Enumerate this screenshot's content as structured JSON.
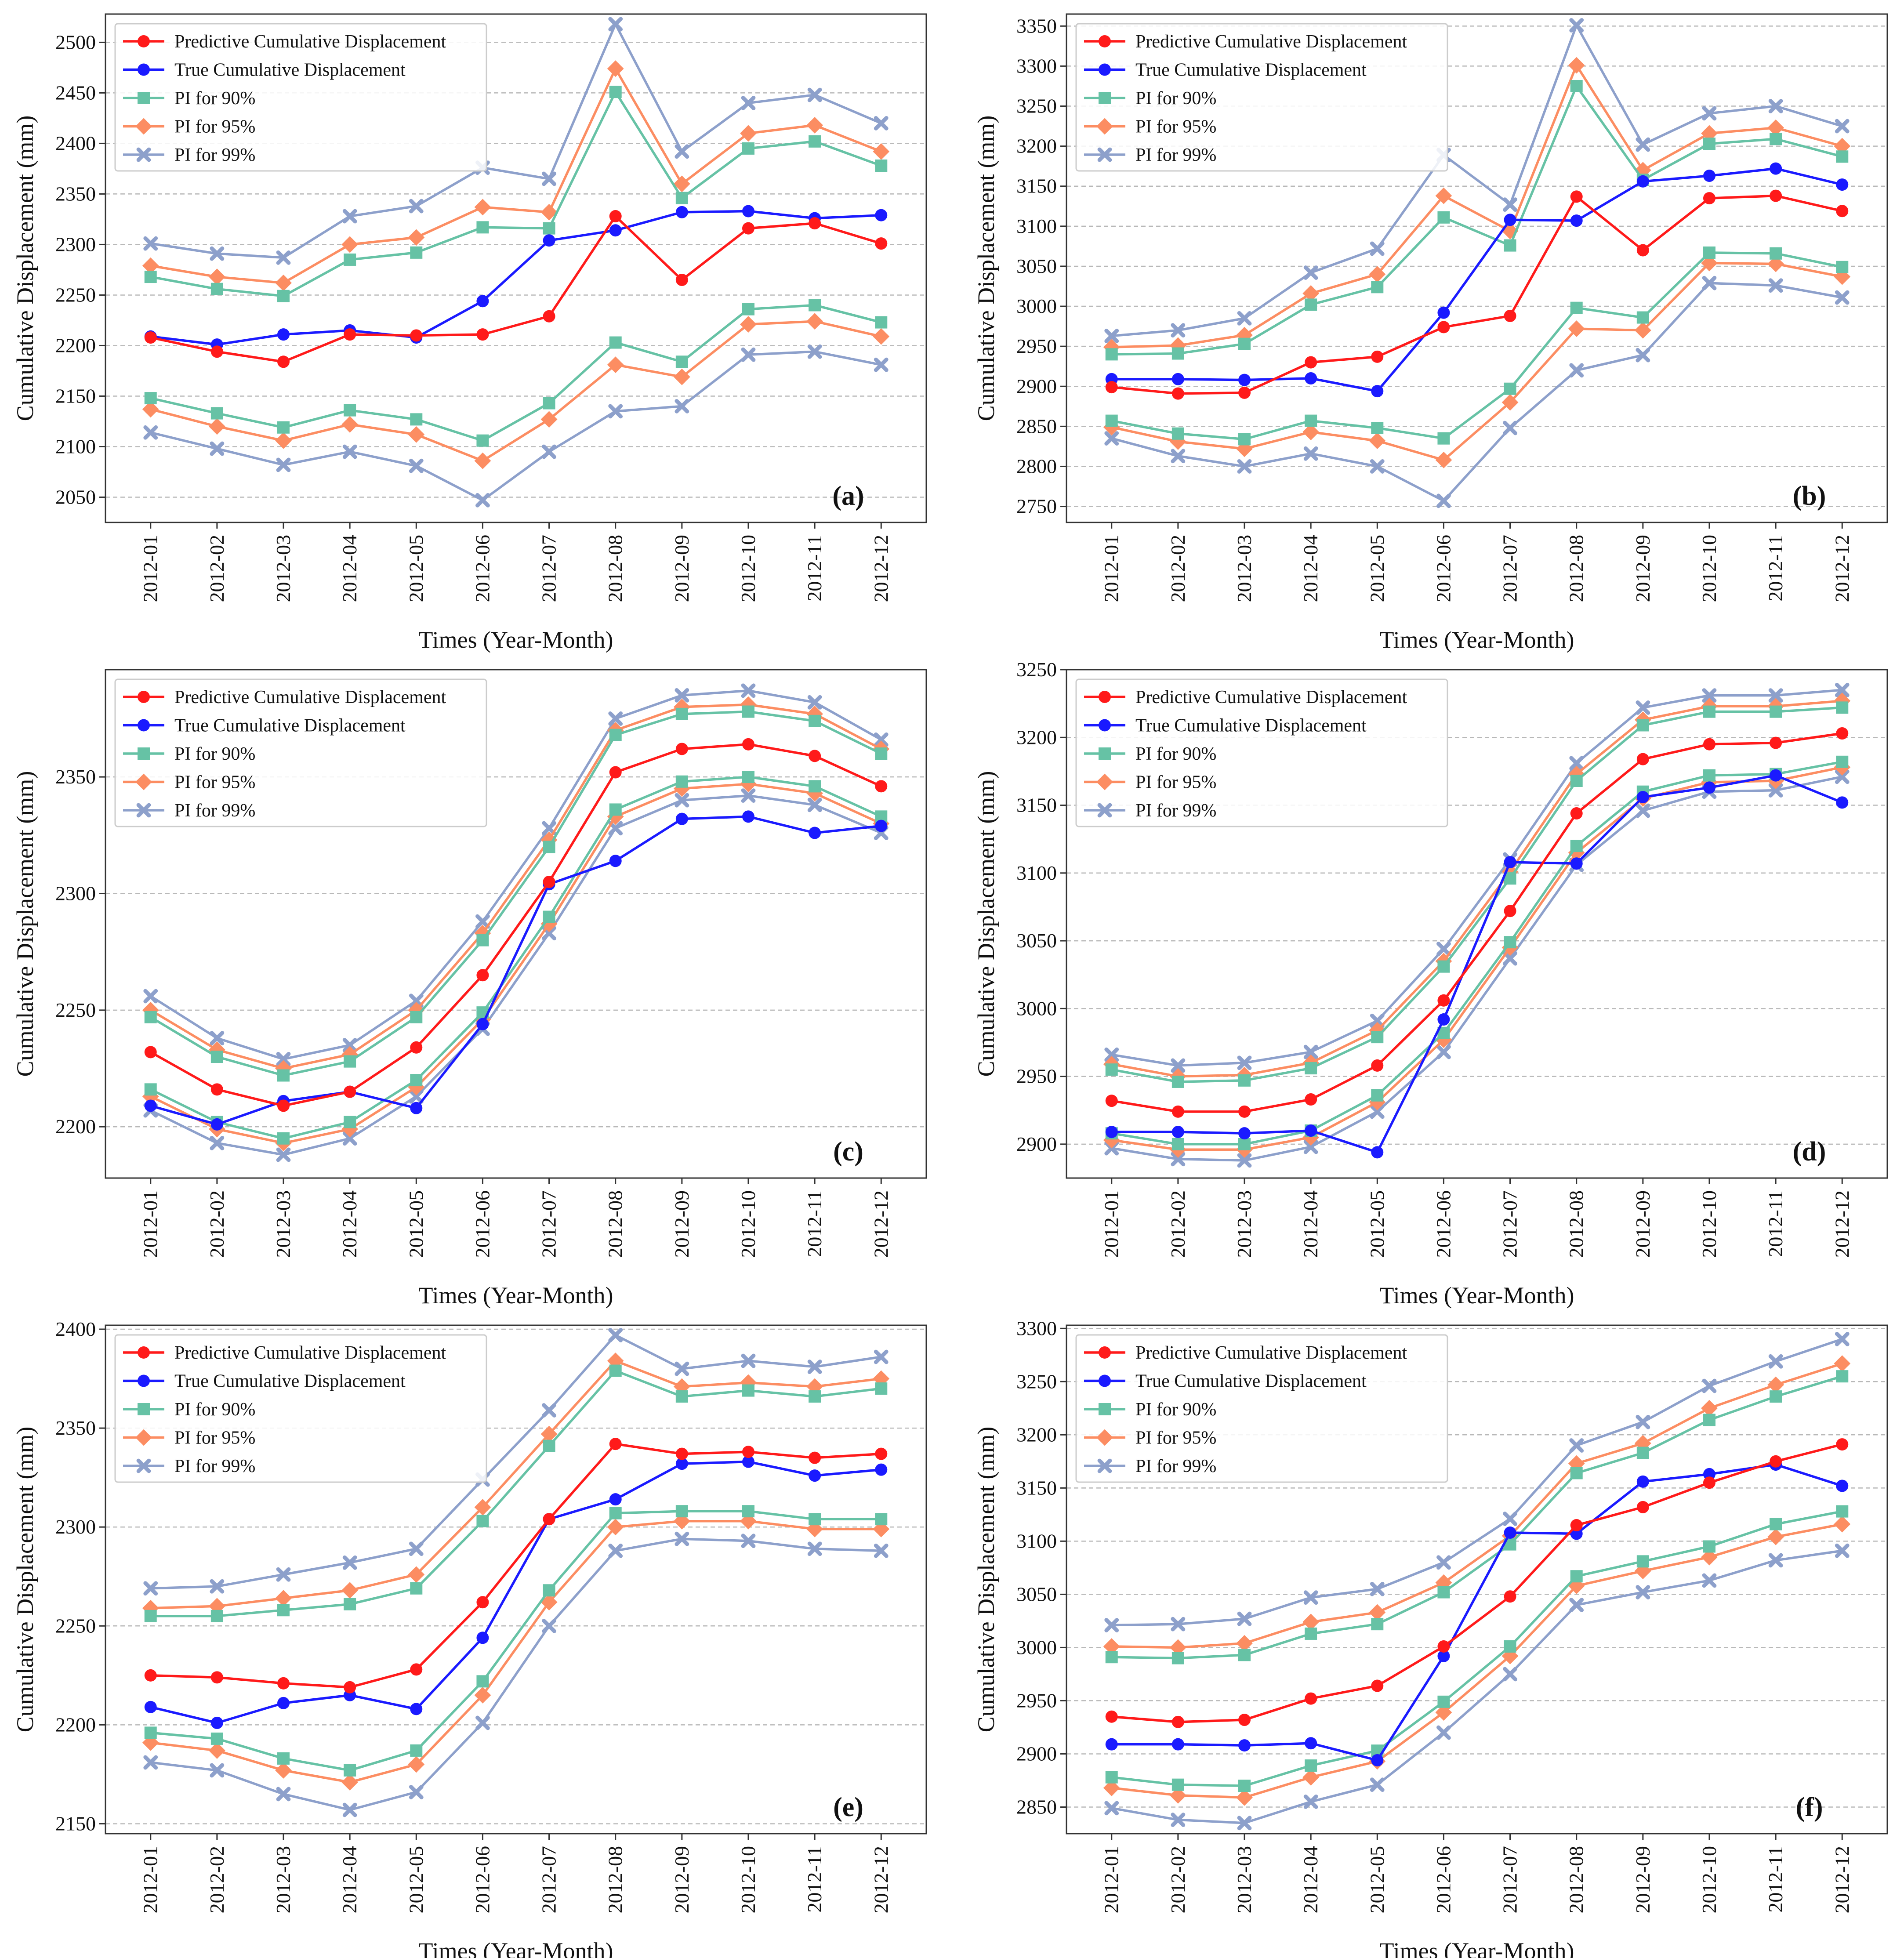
{
  "series_styles": [
    {
      "color": "#ff1a1a",
      "marker": "circle"
    },
    {
      "color": "#1a1aff",
      "marker": "circle"
    },
    {
      "color": "#66c2a5",
      "marker": "square"
    },
    {
      "color": "#fc8d62",
      "marker": "diamond"
    },
    {
      "color": "#8da0cb",
      "marker": "x"
    }
  ],
  "chart_data": [
    {
      "type": "line",
      "panel_label": "(a)",
      "xlabel": "Times (Year-Month)",
      "ylabel": "Cumulative Displacement (mm)",
      "categories": [
        "2012-01",
        "2012-02",
        "2012-03",
        "2012-04",
        "2012-05",
        "2012-06",
        "2012-07",
        "2012-08",
        "2012-09",
        "2012-10",
        "2012-11",
        "2012-12"
      ],
      "ylim": [
        2025,
        2528
      ],
      "yticks": [
        2050,
        2100,
        2150,
        2200,
        2250,
        2300,
        2350,
        2400,
        2450,
        2500
      ],
      "grid": "y-dashed",
      "legend": "top-left",
      "series": [
        {
          "name": "Predictive Cumulative Displacement",
          "values": [
            2208,
            2194,
            2184,
            2211,
            2210,
            2211,
            2229,
            2328,
            2265,
            2316,
            2321,
            2301
          ]
        },
        {
          "name": "True Cumulative Displacement",
          "values": [
            2209,
            2201,
            2211,
            2215,
            2208,
            2244,
            2304,
            2314,
            2332,
            2333,
            2326,
            2329
          ]
        },
        {
          "name": "PI for 90%",
          "bands": [
            [
              2268,
              2256,
              2249,
              2285,
              2292,
              2317,
              2316,
              2451,
              2346,
              2395,
              2402,
              2378
            ],
            [
              2148,
              2133,
              2119,
              2136,
              2127,
              2106,
              2143,
              2203,
              2184,
              2236,
              2240,
              2223
            ]
          ]
        },
        {
          "name": "PI for 95%",
          "bands": [
            [
              2279,
              2268,
              2262,
              2300,
              2307,
              2337,
              2332,
              2474,
              2360,
              2410,
              2418,
              2392
            ],
            [
              2137,
              2120,
              2106,
              2122,
              2112,
              2086,
              2127,
              2181,
              2169,
              2221,
              2224,
              2209
            ]
          ]
        },
        {
          "name": "PI for 99%",
          "bands": [
            [
              2301,
              2291,
              2287,
              2328,
              2338,
              2376,
              2365,
              2518,
              2392,
              2440,
              2448,
              2420
            ],
            [
              2114,
              2098,
              2082,
              2095,
              2081,
              2047,
              2095,
              2135,
              2140,
              2191,
              2194,
              2181
            ]
          ]
        }
      ]
    },
    {
      "type": "line",
      "panel_label": "(b)",
      "xlabel": "Times (Year-Month)",
      "ylabel": "Cumulative Displacement (mm)",
      "categories": [
        "2012-01",
        "2012-02",
        "2012-03",
        "2012-04",
        "2012-05",
        "2012-06",
        "2012-07",
        "2012-08",
        "2012-09",
        "2012-10",
        "2012-11",
        "2012-12"
      ],
      "ylim": [
        2730,
        3365
      ],
      "yticks": [
        2750,
        2800,
        2850,
        2900,
        2950,
        3000,
        3050,
        3100,
        3150,
        3200,
        3250,
        3300,
        3350
      ],
      "grid": "y-dashed",
      "legend": "top-left",
      "series": [
        {
          "name": "Predictive Cumulative Displacement",
          "values": [
            2899,
            2891,
            2892,
            2930,
            2937,
            2974,
            2988,
            3137,
            3070,
            3135,
            3138,
            3119
          ]
        },
        {
          "name": "True Cumulative Displacement",
          "values": [
            2909,
            2909,
            2908,
            2910,
            2894,
            2992,
            3108,
            3107,
            3156,
            3163,
            3172,
            3152
          ]
        },
        {
          "name": "PI for 90%",
          "bands": [
            [
              2940,
              2941,
              2953,
              3002,
              3024,
              3111,
              3076,
              3275,
              3158,
              3203,
              3209,
              3187
            ],
            [
              2857,
              2841,
              2834,
              2857,
              2848,
              2835,
              2897,
              2998,
              2986,
              3067,
              3066,
              3049
            ]
          ]
        },
        {
          "name": "PI for 95%",
          "bands": [
            [
              2949,
              2951,
              2964,
              3016,
              3040,
              3138,
              3094,
              3301,
              3170,
              3216,
              3223,
              3200
            ],
            [
              2849,
              2831,
              2822,
              2843,
              2832,
              2808,
              2880,
              2972,
              2970,
              3054,
              3053,
              3037
            ]
          ]
        },
        {
          "name": "PI for 99%",
          "bands": [
            [
              2963,
              2970,
              2985,
              3042,
              3072,
              3189,
              3127,
              3351,
              3202,
              3241,
              3250,
              3225
            ],
            [
              2835,
              2813,
              2800,
              2816,
              2800,
              2757,
              2848,
              2920,
              2939,
              3029,
              3026,
              3011
            ]
          ]
        }
      ]
    },
    {
      "type": "line",
      "panel_label": "(c)",
      "xlabel": "Times (Year-Month)",
      "ylabel": "Cumulative Displacement (mm)",
      "categories": [
        "2012-01",
        "2012-02",
        "2012-03",
        "2012-04",
        "2012-05",
        "2012-06",
        "2012-07",
        "2012-08",
        "2012-09",
        "2012-10",
        "2012-11",
        "2012-12"
      ],
      "ylim": [
        2178,
        2396
      ],
      "yticks": [
        2200,
        2250,
        2300,
        2350
      ],
      "grid": "y-dashed",
      "legend": "top-left",
      "series": [
        {
          "name": "Predictive Cumulative Displacement",
          "values": [
            2232,
            2216,
            2209,
            2215,
            2234,
            2265,
            2305,
            2352,
            2362,
            2364,
            2359,
            2346
          ]
        },
        {
          "name": "True Cumulative Displacement",
          "values": [
            2209,
            2201,
            2211,
            2215,
            2208,
            2244,
            2304,
            2314,
            2332,
            2333,
            2326,
            2329
          ]
        },
        {
          "name": "PI for 90%",
          "bands": [
            [
              2247,
              2230,
              2222,
              2228,
              2247,
              2280,
              2320,
              2368,
              2377,
              2378,
              2374,
              2360
            ],
            [
              2216,
              2202,
              2195,
              2202,
              2220,
              2249,
              2290,
              2336,
              2348,
              2350,
              2346,
              2333
            ]
          ]
        },
        {
          "name": "PI for 95%",
          "bands": [
            [
              2250,
              2233,
              2225,
              2231,
              2250,
              2283,
              2323,
              2370,
              2380,
              2381,
              2377,
              2362
            ],
            [
              2213,
              2199,
              2193,
              2199,
              2217,
              2246,
              2287,
              2333,
              2345,
              2347,
              2343,
              2330
            ]
          ]
        },
        {
          "name": "PI for 99%",
          "bands": [
            [
              2256,
              2238,
              2229,
              2235,
              2254,
              2288,
              2328,
              2375,
              2385,
              2387,
              2382,
              2366
            ],
            [
              2207,
              2193,
              2188,
              2195,
              2213,
              2242,
              2283,
              2328,
              2340,
              2342,
              2338,
              2326
            ]
          ]
        }
      ]
    },
    {
      "type": "line",
      "panel_label": "(d)",
      "xlabel": "Times (Year-Month)",
      "ylabel": "Cumulative Displacement (mm)",
      "categories": [
        "2012-01",
        "2012-02",
        "2012-03",
        "2012-04",
        "2012-05",
        "2012-06",
        "2012-07",
        "2012-08",
        "2012-09",
        "2012-10",
        "2012-11",
        "2012-12"
      ],
      "ylim": [
        2875,
        3250
      ],
      "yticks": [
        2900,
        2950,
        3000,
        3050,
        3100,
        3150,
        3200,
        3250
      ],
      "grid": "y-dashed",
      "legend": "top-left",
      "series": [
        {
          "name": "Predictive Cumulative Displacement",
          "values": [
            2932,
            2924,
            2924,
            2933,
            2958,
            3006,
            3072,
            3144,
            3184,
            3195,
            3196,
            3203
          ]
        },
        {
          "name": "True Cumulative Displacement",
          "values": [
            2909,
            2909,
            2908,
            2910,
            2894,
            2992,
            3108,
            3107,
            3156,
            3163,
            3172,
            3152
          ]
        },
        {
          "name": "PI for 90%",
          "bands": [
            [
              2955,
              2946,
              2947,
              2956,
              2979,
              3031,
              3096,
              3168,
              3209,
              3219,
              3219,
              3222
            ],
            [
              2908,
              2900,
              2900,
              2910,
              2936,
              2982,
              3049,
              3120,
              3160,
              3172,
              3173,
              3182
            ]
          ]
        },
        {
          "name": "PI for 95%",
          "bands": [
            [
              2959,
              2950,
              2951,
              2960,
              2984,
              3035,
              3101,
              3173,
              3213,
              3223,
              3223,
              3227
            ],
            [
              2903,
              2896,
              2896,
              2905,
              2931,
              2977,
              3045,
              3115,
              3155,
              3167,
              3168,
              3178
            ]
          ]
        },
        {
          "name": "PI for 99%",
          "bands": [
            [
              2966,
              2958,
              2960,
              2968,
              2991,
              3044,
              3110,
              3181,
              3222,
              3231,
              3231,
              3235
            ],
            [
              2897,
              2889,
              2888,
              2898,
              2924,
              2968,
              3037,
              3106,
              3146,
              3160,
              3161,
              3171
            ]
          ]
        }
      ]
    },
    {
      "type": "line",
      "panel_label": "(e)",
      "xlabel": "Times (Year-Month)",
      "ylabel": "Cumulative Displacement (mm)",
      "categories": [
        "2012-01",
        "2012-02",
        "2012-03",
        "2012-04",
        "2012-05",
        "2012-06",
        "2012-07",
        "2012-08",
        "2012-09",
        "2012-10",
        "2012-11",
        "2012-12"
      ],
      "ylim": [
        2145,
        2402
      ],
      "yticks": [
        2150,
        2200,
        2250,
        2300,
        2350,
        2400
      ],
      "grid": "y-dashed",
      "legend": "top-left",
      "series": [
        {
          "name": "Predictive Cumulative Displacement",
          "values": [
            2225,
            2224,
            2221,
            2219,
            2228,
            2262,
            2304,
            2342,
            2337,
            2338,
            2335,
            2337
          ]
        },
        {
          "name": "True Cumulative Displacement",
          "values": [
            2209,
            2201,
            2211,
            2215,
            2208,
            2244,
            2304,
            2314,
            2332,
            2333,
            2326,
            2329
          ]
        },
        {
          "name": "PI for 90%",
          "bands": [
            [
              2255,
              2255,
              2258,
              2261,
              2269,
              2303,
              2341,
              2379,
              2366,
              2369,
              2366,
              2370
            ],
            [
              2196,
              2193,
              2183,
              2177,
              2187,
              2222,
              2268,
              2307,
              2308,
              2308,
              2304,
              2304
            ]
          ]
        },
        {
          "name": "PI for 95%",
          "bands": [
            [
              2259,
              2260,
              2264,
              2268,
              2276,
              2310,
              2347,
              2384,
              2371,
              2373,
              2371,
              2375
            ],
            [
              2191,
              2187,
              2177,
              2171,
              2180,
              2215,
              2262,
              2300,
              2303,
              2303,
              2299,
              2299
            ]
          ]
        },
        {
          "name": "PI for 99%",
          "bands": [
            [
              2269,
              2270,
              2276,
              2282,
              2289,
              2324,
              2359,
              2397,
              2380,
              2384,
              2381,
              2386
            ],
            [
              2181,
              2177,
              2165,
              2157,
              2166,
              2201,
              2250,
              2288,
              2294,
              2293,
              2289,
              2288
            ]
          ]
        }
      ]
    },
    {
      "type": "line",
      "panel_label": "(f)",
      "xlabel": "Times (Year-Month)",
      "ylabel": "Cumulative Displacement (mm)",
      "categories": [
        "2012-01",
        "2012-02",
        "2012-03",
        "2012-04",
        "2012-05",
        "2012-06",
        "2012-07",
        "2012-08",
        "2012-09",
        "2012-10",
        "2012-11",
        "2012-12"
      ],
      "ylim": [
        2825,
        3303
      ],
      "yticks": [
        2850,
        2900,
        2950,
        3000,
        3050,
        3100,
        3150,
        3200,
        3250,
        3300
      ],
      "grid": "y-dashed",
      "legend": "top-left",
      "series": [
        {
          "name": "Predictive Cumulative Displacement",
          "values": [
            2935,
            2930,
            2932,
            2952,
            2964,
            3001,
            3048,
            3115,
            3132,
            3155,
            3175,
            3191
          ]
        },
        {
          "name": "True Cumulative Displacement",
          "values": [
            2909,
            2909,
            2908,
            2910,
            2894,
            2992,
            3108,
            3107,
            3156,
            3163,
            3172,
            3152
          ]
        },
        {
          "name": "PI for 90%",
          "bands": [
            [
              2991,
              2990,
              2993,
              3013,
              3022,
              3052,
              3097,
              3164,
              3183,
              3214,
              3236,
              3255
            ],
            [
              2878,
              2871,
              2870,
              2889,
              2903,
              2949,
              3001,
              3067,
              3081,
              3095,
              3116,
              3128
            ]
          ]
        },
        {
          "name": "PI for 95%",
          "bands": [
            [
              3001,
              3000,
              3004,
              3024,
              3033,
              3061,
              3105,
              3173,
              3192,
              3225,
              3247,
              3267
            ],
            [
              2868,
              2861,
              2859,
              2878,
              2893,
              2939,
              2992,
              3058,
              3072,
              3085,
              3104,
              3116
            ]
          ]
        },
        {
          "name": "PI for 99%",
          "bands": [
            [
              3021,
              3022,
              3027,
              3047,
              3055,
              3080,
              3121,
              3190,
              3212,
              3246,
              3269,
              3290
            ],
            [
              2849,
              2838,
              2835,
              2855,
              2871,
              2920,
              2975,
              3040,
              3052,
              3063,
              3082,
              3091
            ]
          ]
        }
      ]
    }
  ]
}
